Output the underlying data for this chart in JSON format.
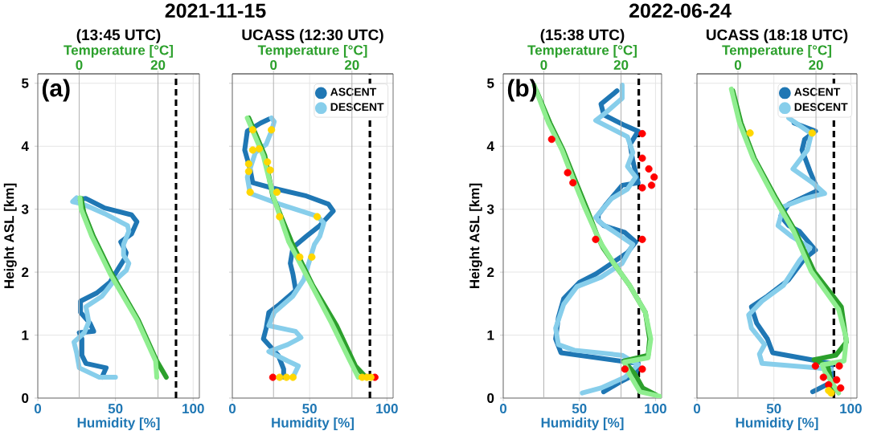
{
  "chart_data": [
    {
      "type": "line",
      "title": "2021-11-15",
      "subtitle": "(13:45 UTC)",
      "xlabel": "Humidity [%]",
      "x2label": "Temperature [°C]",
      "ylabel": "Height ASL [km]",
      "annotations": [
        "(a)"
      ],
      "xlim": [
        0,
        104
      ],
      "xticks": [
        0,
        50,
        100
      ],
      "x2lim": [
        -10.5,
        30.5
      ],
      "x2ticks": [
        0,
        20
      ],
      "ylim": [
        0,
        5.15
      ],
      "yticks": [
        0,
        1,
        2,
        3,
        4,
        5
      ],
      "grid": true,
      "ref_lines": [
        {
          "axis": "x",
          "value": 89,
          "color": "#000000",
          "line_style": "dashed"
        }
      ],
      "series": [
        {
          "color": "#1f77b4",
          "x": [
            41.3,
            44,
            31,
            28.4,
            28.4,
            26.7,
            36,
            33.6,
            27.5,
            27.5,
            38,
            46.5,
            51.7,
            56,
            56.9,
            53.4,
            60.4,
            63.8,
            60.4,
            43,
            31,
            24
          ],
          "values": [
            0.33,
            0.48,
            0.55,
            0.68,
            0.94,
            1.04,
            1.06,
            1.19,
            1.36,
            1.54,
            1.67,
            1.84,
            2.05,
            2.22,
            2.31,
            2.48,
            2.61,
            2.8,
            2.91,
            3.02,
            3.17,
            3.15
          ]
        },
        {
          "color": "#87ceeb",
          "x": [
            50,
            39.6,
            26.7,
            25,
            23.3,
            30,
            32.8,
            31,
            41.4,
            48.3,
            57,
            58.6,
            55.2,
            55.2,
            58.6,
            57.8,
            43,
            29.3,
            22.4,
            25
          ],
          "values": [
            0.33,
            0.33,
            0.48,
            0.72,
            0.89,
            1.04,
            1.21,
            1.45,
            1.62,
            1.84,
            2.03,
            2.14,
            2.27,
            2.44,
            2.65,
            2.74,
            2.93,
            3.08,
            3.12,
            3.18
          ]
        },
        {
          "color": "#2ca02c",
          "axis": "x2",
          "x": [
            22.1,
            19.7,
            15,
            8.3,
            3.6,
            1.2,
            0.5
          ],
          "values": [
            0.33,
            0.59,
            1.24,
            1.97,
            2.57,
            2.95,
            3.17
          ]
        },
        {
          "color": "#90ee90",
          "axis": "x2",
          "x": [
            19.7,
            19.4,
            14.7,
            7.9,
            3.2,
            0.5,
            0.2
          ],
          "values": [
            0.33,
            0.59,
            1.24,
            1.97,
            2.57,
            3.0,
            3.18
          ]
        }
      ]
    },
    {
      "type": "line",
      "subtitle": "UCASS (12:30 UTC)",
      "xlabel": "Humidity [%]",
      "x2label": "Temperature [°C]",
      "xlim": [
        0,
        104
      ],
      "xticks": [
        0,
        50,
        100
      ],
      "x2lim": [
        -10.5,
        30.5
      ],
      "x2ticks": [
        0,
        20
      ],
      "ylim": [
        0,
        5.15
      ],
      "yticks": [
        0,
        1,
        2,
        3,
        4,
        5
      ],
      "grid": true,
      "tick_labels": "x",
      "legend": "top right",
      "ref_lines": [
        {
          "axis": "x",
          "value": 89,
          "color": "#000000",
          "line_style": "dashed"
        }
      ],
      "series": [
        {
          "name": "ASCENT",
          "color": "#1f77b4",
          "x": [
            33.2,
            33.2,
            29.7,
            20.1,
            21.9,
            23.6,
            30.6,
            41,
            39.2,
            37.5,
            39.2,
            47.9,
            56.6,
            65.3,
            62.2,
            47.9,
            25.3,
            13.2,
            11.5,
            8,
            9.7,
            18.4,
            23.6
          ],
          "values": [
            0.33,
            0.46,
            0.68,
            0.94,
            1.11,
            1.36,
            1.49,
            1.71,
            1.97,
            2.14,
            2.39,
            2.57,
            2.74,
            2.97,
            3.08,
            3.21,
            3.34,
            3.42,
            3.64,
            3.94,
            4.24,
            4.37,
            4.43
          ]
        },
        {
          "name": "DESCENT",
          "color": "#87ceeb",
          "x": [
            39.2,
            42.7,
            35.8,
            23.6,
            35.8,
            44.4,
            40.9,
            23.6,
            27.1,
            39.2,
            46.2,
            53.1,
            56.6,
            59.2,
            54.9,
            30.6,
            11.5,
            9.7,
            14.9,
            21.9,
            25.3,
            27.1,
            25.3
          ],
          "values": [
            0.33,
            0.51,
            0.59,
            0.74,
            0.85,
            0.96,
            1.06,
            1.15,
            1.36,
            1.62,
            1.88,
            2.44,
            2.57,
            2.78,
            2.89,
            3.08,
            3.25,
            3.51,
            3.9,
            4.03,
            4.24,
            4.39,
            4.45
          ]
        },
        {
          "color": "#2ca02c",
          "axis": "x2",
          "x": [
            23.6,
            20.9,
            16.1,
            10,
            4.6,
            -0.2,
            -2.2,
            -6.3
          ],
          "values": [
            0.33,
            0.51,
            1.15,
            1.79,
            2.48,
            3.21,
            3.85,
            4.45
          ]
        },
        {
          "color": "#90ee90",
          "axis": "x2",
          "x": [
            21.6,
            19.5,
            14.8,
            9.3,
            3.9,
            0.1,
            -2.6,
            -6.7
          ],
          "values": [
            0.33,
            0.59,
            1.19,
            1.84,
            2.48,
            3.17,
            3.85,
            4.45
          ]
        },
        {
          "type": "scatter",
          "marker": "circle",
          "color": "#ff0000",
          "x": [
            26.2,
            92.2
          ],
          "values": [
            0.33,
            0.33
          ]
        },
        {
          "type": "scatter",
          "marker": "circle",
          "color": "#ffd700",
          "x": [
            30.6,
            35,
            39.2,
            84,
            87,
            89.6,
            13.2,
            25.3,
            13.2,
            17.4,
            10.6,
            10.6,
            22.7,
            24.5,
            11.5,
            28.8,
            30.6,
            54.9,
            43.6,
            51.4
          ],
          "values": [
            0.33,
            0.33,
            0.33,
            0.33,
            0.33,
            0.33,
            4.26,
            4.26,
            3.94,
            3.96,
            3.72,
            3.6,
            3.75,
            3.62,
            3.27,
            3.27,
            2.88,
            2.88,
            2.24,
            2.24
          ]
        }
      ]
    },
    {
      "type": "line",
      "title": "2022-06-24",
      "subtitle": "(15:38 UTC)",
      "xlabel": "Humidity [%]",
      "x2label": "Temperature [°C]",
      "ylabel": "Height ASL [km]",
      "annotations": [
        "(b)"
      ],
      "xlim": [
        0,
        104
      ],
      "xticks": [
        0,
        50,
        100
      ],
      "x2lim": [
        -10.5,
        30.5
      ],
      "x2ticks": [
        0,
        20
      ],
      "ylim": [
        0,
        5.15
      ],
      "yticks": [
        0,
        1,
        2,
        3,
        4,
        5
      ],
      "grid": true,
      "ref_lines": [
        {
          "axis": "x",
          "value": 89,
          "color": "#000000",
          "line_style": "dashed"
        }
      ],
      "series": [
        {
          "color": "#1f77b4",
          "x": [
            65.9,
            76.4,
            86.9,
            88.6,
            37.9,
            34.4,
            36.2,
            39.7,
            50.2,
            60.7,
            71.2,
            81.6,
            87,
            79.9,
            66,
            62.4,
            62.4,
            67.7,
            78.1,
            88.6,
            85.1,
            83.3,
            88.6,
            79.9,
            66,
            64.2,
            74.7
          ],
          "values": [
            0.1,
            0.25,
            0.38,
            0.55,
            0.72,
            0.94,
            1.28,
            1.58,
            1.84,
            1.97,
            2.14,
            2.31,
            2.48,
            2.63,
            2.74,
            2.82,
            2.91,
            3.08,
            3.38,
            3.42,
            3.77,
            4.03,
            4.24,
            4.33,
            4.5,
            4.67,
            4.88
          ]
        },
        {
          "color": "#87ceeb",
          "x": [
            51.9,
            64.2,
            79.9,
            88.6,
            78.1,
            46.7,
            36.2,
            34.4,
            39.7,
            48.4,
            64.2,
            78.1,
            85.1,
            74.7,
            64.2,
            60.7,
            71.2,
            81.6,
            87,
            81.6,
            85.1,
            81.6,
            60.7,
            67.7,
            78.1,
            78.1
          ],
          "values": [
            0.08,
            0.16,
            0.33,
            0.53,
            0.68,
            0.76,
            0.85,
            1.11,
            1.49,
            1.77,
            1.92,
            2.14,
            2.44,
            2.61,
            2.78,
            2.87,
            3.17,
            3.32,
            3.51,
            3.68,
            3.9,
            4.15,
            4.41,
            4.54,
            4.76,
            4.97
          ]
        },
        {
          "color": "#2ca02c",
          "axis": "x2",
          "x": [
            29.1,
            25.6,
            23.6,
            20.8,
            27,
            27.4,
            26.3,
            22.2,
            18.1,
            15.3,
            13.9,
            11.2,
            7.8,
            5,
            1.6,
            -1.9
          ],
          "values": [
            0.05,
            0.16,
            0.38,
            0.59,
            0.68,
            0.94,
            1.36,
            1.79,
            2.14,
            2.39,
            2.57,
            3.0,
            3.51,
            3.94,
            4.37,
            4.88
          ]
        },
        {
          "color": "#90ee90",
          "axis": "x2",
          "x": [
            30,
            24.9,
            22.2,
            20.8,
            27,
            27.7,
            26.3,
            22.2,
            18.1,
            15,
            13.3,
            10.5,
            7.4,
            4.7,
            1.2,
            -2.5
          ],
          "values": [
            0.03,
            0.1,
            0.38,
            0.57,
            0.64,
            0.94,
            1.36,
            1.79,
            2.14,
            2.44,
            2.65,
            3.04,
            3.51,
            3.94,
            4.37,
            4.97
          ]
        },
        {
          "type": "scatter",
          "marker": "circle",
          "color": "#ff0000",
          "x": [
            91.3,
            91.3,
            95.6,
            99.1,
            97.4,
            91.3,
            91.3,
            91.3,
            79.9,
            31.8,
            42.3,
            45.8,
            60.7
          ],
          "values": [
            4.2,
            3.81,
            3.64,
            3.51,
            3.38,
            3.34,
            2.52,
            0.46,
            0.46,
            4.11,
            3.58,
            3.42,
            2.52
          ]
        }
      ]
    },
    {
      "type": "line",
      "subtitle": "UCASS (18:18 UTC)",
      "xlabel": "Humidity [%]",
      "x2label": "Temperature [°C]",
      "xlim": [
        0,
        104
      ],
      "xticks": [
        0,
        50,
        100
      ],
      "x2lim": [
        -10.5,
        30.5
      ],
      "x2ticks": [
        0,
        20
      ],
      "ylim": [
        0,
        5.15
      ],
      "yticks": [
        0,
        1,
        2,
        3,
        4,
        5
      ],
      "grid": true,
      "tick_labels": "x",
      "legend": "top right",
      "ref_lines": [
        {
          "axis": "x",
          "value": 89,
          "color": "#000000",
          "line_style": "dashed"
        }
      ],
      "series": [
        {
          "name": "ASCENT",
          "color": "#1f77b4",
          "x": [
            75.2,
            87.3,
            87.3,
            49.2,
            45.8,
            38.8,
            35.4,
            45.8,
            59.6,
            70,
            77,
            66.6,
            59.6,
            54.4,
            59.6,
            78.7,
            73.5,
            68.3,
            70,
            77,
            63.1
          ],
          "values": [
            0.1,
            0.25,
            0.55,
            0.72,
            0.94,
            1.19,
            1.45,
            1.62,
            1.88,
            2.22,
            2.35,
            2.65,
            2.74,
            2.89,
            3.08,
            3.3,
            3.6,
            3.94,
            4.11,
            4.24,
            4.37
          ]
        },
        {
          "name": "DESCENT",
          "color": "#87ceeb",
          "x": [
            87.3,
            42.3,
            40.6,
            44,
            35.4,
            33.6,
            42.3,
            56.2,
            66.6,
            73.5,
            61.4,
            52.7,
            56.2,
            70,
            83,
            75.2,
            62.4,
            71.8,
            74.4,
            59.6
          ],
          "values": [
            0.46,
            0.55,
            0.7,
            0.85,
            1.11,
            1.32,
            1.54,
            1.79,
            2.18,
            2.39,
            2.57,
            2.74,
            3.04,
            3.17,
            3.25,
            3.42,
            3.64,
            3.94,
            4.2,
            4.45
          ]
        },
        {
          "color": "#2ca02c",
          "axis": "x2",
          "x": [
            24.4,
            23,
            19.5,
            25.1,
            27.8,
            26.5,
            19.5,
            14.7,
            9.8,
            4.2,
            0.8,
            -1.3
          ],
          "values": [
            0.12,
            0.51,
            0.61,
            0.68,
            0.89,
            1.45,
            2.01,
            2.65,
            3.17,
            3.81,
            4.37,
            4.88
          ]
        },
        {
          "color": "#90ee90",
          "axis": "x2",
          "x": [
            25.8,
            22.3,
            21.6,
            27.2,
            27.8,
            25.8,
            18.8,
            14.3,
            9.4,
            3.9,
            0.4,
            -1.7
          ],
          "values": [
            0.08,
            0.42,
            0.53,
            0.59,
            0.94,
            1.41,
            2.01,
            2.65,
            3.17,
            3.81,
            4.37,
            4.91
          ]
        },
        {
          "type": "scatter",
          "marker": "circle",
          "color": "#ff0000",
          "x": [
            77,
            82.2,
            85.6,
            92.5,
            90.8,
            93.4
          ],
          "values": [
            0.51,
            0.33,
            0.21,
            0.51,
            0.29,
            0.16
          ]
        },
        {
          "type": "scatter",
          "marker": "circle",
          "color": "#ffd700",
          "x": [
            34.5,
            74.9,
            85.6,
            87.3
          ],
          "values": [
            4.21,
            4.21,
            0.12,
            0.08
          ]
        }
      ]
    }
  ]
}
